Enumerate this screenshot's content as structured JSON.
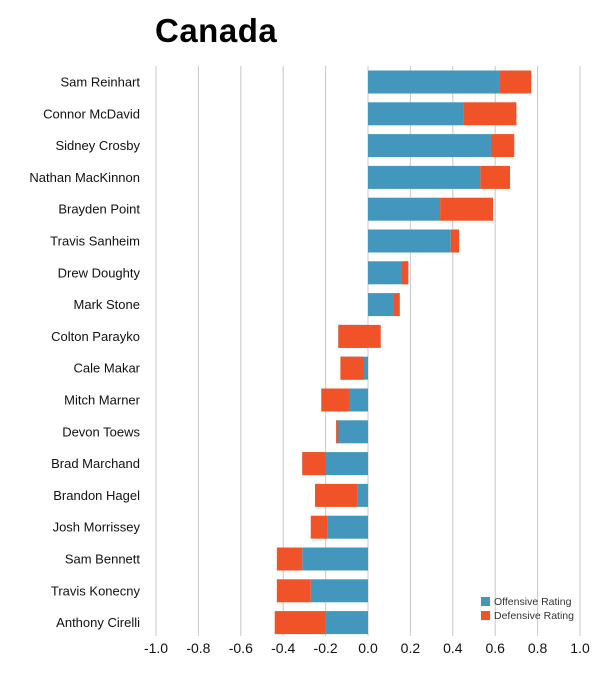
{
  "title": "Canada",
  "colors": {
    "offensive": "#4497bc",
    "defensive": "#ef5327",
    "grid": "#c8c8c8"
  },
  "chart_data": {
    "type": "bar",
    "orientation": "horizontal",
    "stacked": "diverging",
    "title": "Canada",
    "xlabel": "",
    "ylabel": "",
    "xlim": [
      -1.0,
      1.0
    ],
    "xticks": [
      -1.0,
      -0.8,
      -0.6,
      -0.4,
      -0.2,
      0.0,
      0.2,
      0.4,
      0.6,
      0.8,
      1.0
    ],
    "xtick_labels": [
      "-1.0",
      "-0.8",
      "-0.6",
      "-0.4",
      "-0.2",
      "0.0",
      "0.2",
      "0.4",
      "0.6",
      "0.8",
      "1.0"
    ],
    "grid": true,
    "legend_position": "bottom-right",
    "categories": [
      "Sam Reinhart",
      "Connor McDavid",
      "Sidney Crosby",
      "Nathan MacKinnon",
      "Brayden Point",
      "Travis Sanheim",
      "Drew Doughty",
      "Mark Stone",
      "Colton Parayko",
      "Cale Makar",
      "Mitch Marner",
      "Devon Toews",
      "Brad Marchand",
      "Brandon Hagel",
      "Josh Morrissey",
      "Sam Bennett",
      "Travis Konecny",
      "Anthony Cirelli"
    ],
    "series": [
      {
        "name": "Offensive Rating",
        "values": [
          0.62,
          0.45,
          0.58,
          0.53,
          0.34,
          0.39,
          0.19,
          0.12,
          -0.14,
          -0.13,
          -0.22,
          -0.15,
          -0.31,
          -0.05,
          -0.19,
          -0.31,
          -0.27,
          -0.2
        ]
      },
      {
        "name": "Defensive Rating",
        "values": [
          0.15,
          0.25,
          0.11,
          0.14,
          0.25,
          0.04,
          -0.03,
          0.03,
          0.2,
          0.11,
          0.13,
          0.01,
          0.11,
          -0.2,
          -0.08,
          -0.12,
          -0.16,
          -0.24
        ]
      }
    ]
  }
}
